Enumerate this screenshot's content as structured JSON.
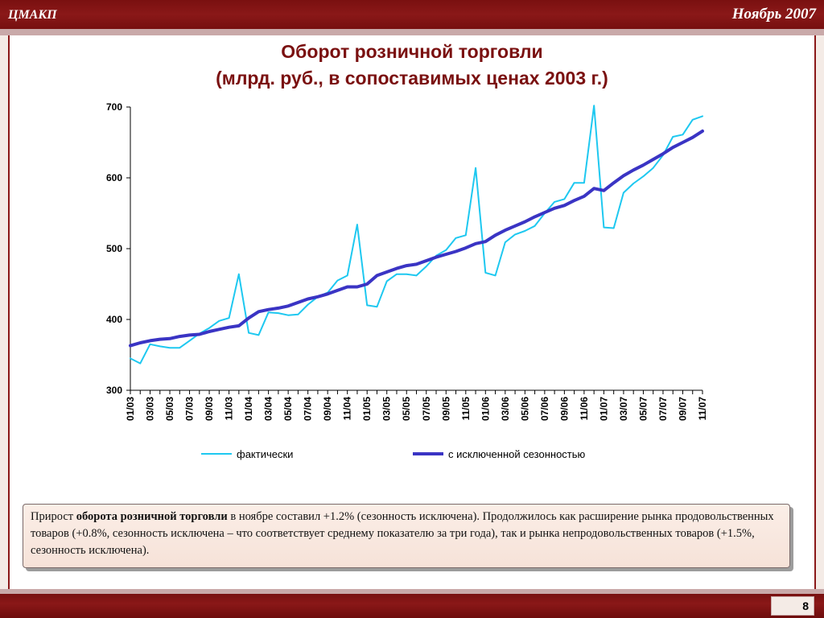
{
  "header": {
    "brand": "ЦМАКП",
    "date": "Ноябрь 2007"
  },
  "title_line1": "Оборот розничной торговли",
  "title_line2": "(млрд. руб., в сопоставимых ценах 2003 г.)",
  "chart_data": {
    "type": "line",
    "ylim": [
      300,
      700
    ],
    "yticks": [
      300,
      400,
      500,
      600,
      700
    ],
    "x": [
      "01/03",
      "02/03",
      "03/03",
      "04/03",
      "05/03",
      "06/03",
      "07/03",
      "08/03",
      "09/03",
      "10/03",
      "11/03",
      "12/03",
      "01/04",
      "02/04",
      "03/04",
      "04/04",
      "05/04",
      "06/04",
      "07/04",
      "08/04",
      "09/04",
      "10/04",
      "11/04",
      "12/04",
      "01/05",
      "02/05",
      "03/05",
      "04/05",
      "05/05",
      "06/05",
      "07/05",
      "08/05",
      "09/05",
      "10/05",
      "11/05",
      "12/05",
      "01/06",
      "02/06",
      "03/06",
      "04/06",
      "05/06",
      "06/06",
      "07/06",
      "08/06",
      "09/06",
      "10/06",
      "11/06",
      "12/06",
      "01/07",
      "02/07",
      "03/07",
      "04/07",
      "05/07",
      "06/07",
      "07/07",
      "08/07",
      "09/07",
      "10/07",
      "11/07"
    ],
    "x_tick_labels": [
      "01/03",
      "03/03",
      "05/03",
      "07/03",
      "09/03",
      "11/03",
      "01/04",
      "03/04",
      "05/04",
      "07/04",
      "09/04",
      "11/04",
      "01/05",
      "03/05",
      "05/05",
      "07/05",
      "09/05",
      "11/05",
      "01/06",
      "03/06",
      "05/06",
      "07/06",
      "09/06",
      "11/06",
      "01/07",
      "03/07",
      "05/07",
      "07/07",
      "09/07",
      "11/07"
    ],
    "series": [
      {
        "name": "фактически",
        "color": "#1ec8f0",
        "values": [
          345,
          338,
          365,
          362,
          360,
          360,
          370,
          380,
          388,
          398,
          402,
          464,
          381,
          378,
          410,
          409,
          406,
          407,
          421,
          432,
          438,
          455,
          462,
          534,
          420,
          418,
          454,
          464,
          464,
          462,
          475,
          490,
          498,
          515,
          519,
          614,
          466,
          462,
          509,
          520,
          525,
          532,
          550,
          566,
          570,
          593,
          593,
          702,
          530,
          529,
          579,
          592,
          602,
          614,
          632,
          658,
          661,
          682,
          687
        ]
      },
      {
        "name": "с исключенной сезонностью",
        "color": "#3a34c4",
        "values": [
          363,
          367,
          370,
          372,
          373,
          376,
          378,
          379,
          383,
          386,
          389,
          391,
          402,
          411,
          414,
          416,
          419,
          424,
          429,
          432,
          436,
          441,
          446,
          446,
          450,
          462,
          467,
          472,
          476,
          478,
          483,
          488,
          492,
          496,
          501,
          507,
          510,
          519,
          526,
          532,
          538,
          545,
          551,
          557,
          561,
          568,
          574,
          585,
          582,
          593,
          603,
          611,
          618,
          626,
          634,
          643,
          650,
          657,
          666
        ]
      }
    ]
  },
  "note": {
    "part1": "Прирост ",
    "bold": "оборота розничной торговли",
    "part2": " в ноябре составил +1.2% (сезонность исключена). Продолжилось как расширение рынка продовольственных товаров (+0.8%, сезонность исключена – что соответствует среднему показателю за три года), так и рынка непродовольственных товаров (+1.5%, сезонность исключена)."
  },
  "footer": {
    "page": "8"
  }
}
